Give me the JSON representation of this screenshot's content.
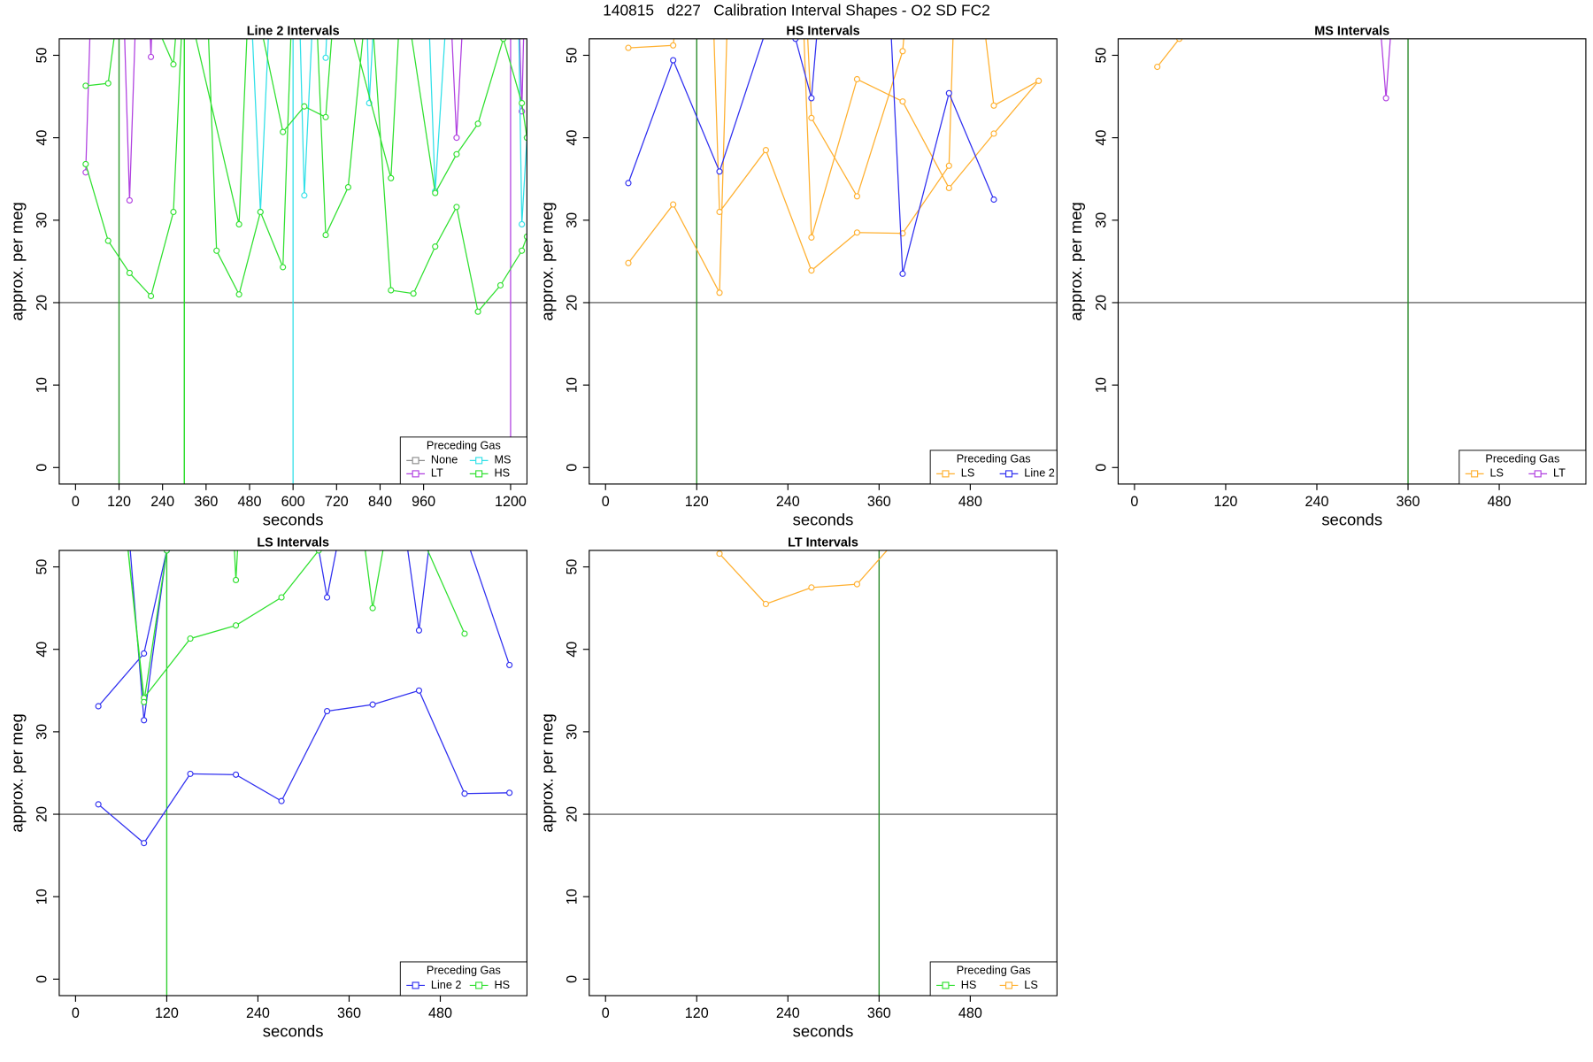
{
  "title": "140815   d227   Calibration Interval Shapes - O2 SD FC2",
  "chart_data": [
    {
      "type": "line",
      "title": "Line 2 Intervals",
      "xlabel": "seconds",
      "ylabel": "approx. per meg",
      "xlim": [
        -45,
        1245
      ],
      "ylim": [
        -2,
        52
      ],
      "xticks": [
        0,
        120,
        240,
        360,
        480,
        600,
        720,
        840,
        960,
        1200
      ],
      "yticks": [
        0,
        10,
        20,
        30,
        40,
        50
      ],
      "hline": 20,
      "vlines": [
        {
          "value": 120,
          "color": "#2e9a2e"
        },
        {
          "value": 300,
          "color": "#22dd22"
        }
      ],
      "legend": {
        "title": "Preceding Gas",
        "position": "bottom-right",
        "ncol": 2
      },
      "series": [
        {
          "name": "None",
          "color": "#8c8c8c",
          "x": [],
          "values": []
        },
        {
          "name": "LT",
          "color": "#b040e0",
          "x": [
            28,
            45,
            null,
            130,
            149,
            170,
            null,
            200,
            208,
            215,
            null,
            1030,
            1051,
            1075,
            null,
            1200,
            1200,
            null,
            1220,
            1231,
            1240
          ],
          "values": [
            35.8,
            60,
            null,
            60,
            32.4,
            60,
            null,
            60,
            49.8,
            60,
            null,
            60,
            40,
            60,
            null,
            60,
            -5,
            null,
            60,
            43.2,
            60
          ]
        },
        {
          "name": "MS",
          "color": "#30e0e8",
          "x": [
            480,
            510,
            540,
            null,
            600,
            600,
            null,
            615,
            631,
            660,
            null,
            690,
            700,
            null,
            800,
            810,
            830,
            null,
            970,
            992,
            1030,
            null,
            1220,
            1231,
            1245
          ],
          "values": [
            60,
            31,
            60,
            null,
            60,
            -5,
            null,
            60,
            33,
            60,
            null,
            49.7,
            60,
            null,
            60,
            44.2,
            60,
            null,
            60,
            33.5,
            60,
            null,
            60,
            29.5,
            40
          ]
        },
        {
          "name": "HS",
          "color": "#30e030",
          "x": [
            28,
            90,
            149,
            208,
            270,
            300,
            360,
            389,
            451,
            510,
            572,
            600,
            660,
            690,
            752,
            810,
            870,
            932,
            992,
            1051,
            1110,
            1172,
            1231,
            1245,
            null,
            28,
            90,
            130,
            160,
            270,
            290,
            451,
            480,
            572,
            631,
            690,
            720,
            870,
            900,
            992,
            1051,
            1110,
            1180,
            1231,
            1245
          ],
          "values": [
            36.8,
            27.5,
            23.6,
            20.8,
            31,
            60,
            60,
            26.3,
            21,
            31,
            24.3,
            60,
            60,
            28.2,
            34,
            60,
            21.5,
            21.1,
            26.8,
            31.6,
            18.9,
            22.1,
            26.3,
            28,
            null,
            46.3,
            46.6,
            60,
            60,
            48.9,
            60,
            29.5,
            60,
            40.7,
            43.8,
            42.5,
            60,
            35.1,
            60,
            33.3,
            38,
            41.7,
            52,
            44.2,
            40
          ]
        }
      ]
    },
    {
      "type": "line",
      "title": "HS Intervals",
      "xlabel": "seconds",
      "ylabel": "approx. per meg",
      "xlim": [
        -21.5,
        594
      ],
      "ylim": [
        -2,
        52
      ],
      "xticks": [
        0,
        120,
        240,
        360,
        480
      ],
      "yticks": [
        0,
        10,
        20,
        30,
        40,
        50
      ],
      "hline": 20,
      "vlines": [
        {
          "value": 120,
          "color": "#2a8a2a"
        }
      ],
      "legend": {
        "title": "Preceding Gas",
        "position": "bottom-right",
        "ncol": 2
      },
      "series": [
        {
          "name": "LS",
          "color": "#ffb030",
          "x": [
            30,
            89,
            150,
            162,
            null,
            30,
            89,
            100,
            null,
            140,
            150,
            211,
            271,
            331,
            391,
            452,
            460,
            null,
            258,
            271,
            331,
            391,
            452,
            511,
            570,
            null,
            262,
            271,
            331,
            391,
            400,
            null,
            490,
            511,
            570
          ],
          "values": [
            24.8,
            31.9,
            21.2,
            60,
            null,
            50.9,
            51.2,
            60,
            null,
            60,
            31,
            38.5,
            23.9,
            28.5,
            28.4,
            36.6,
            60,
            null,
            60,
            27.9,
            47.1,
            44.4,
            33.9,
            40.5,
            46.9,
            null,
            60,
            42.4,
            32.9,
            50.5,
            60,
            null,
            60,
            43.9,
            46.9
          ]
        },
        {
          "name": "Line 2",
          "color": "#3030f0",
          "x": [
            30,
            89,
            150,
            211,
            250,
            271,
            285,
            null,
            372,
            391,
            452,
            511
          ],
          "values": [
            34.5,
            49.4,
            35.9,
            53,
            52,
            44.8,
            60,
            null,
            60,
            23.5,
            45.4,
            32.5
          ]
        }
      ]
    },
    {
      "type": "line",
      "title": "MS Intervals",
      "xlabel": "seconds",
      "ylabel": "approx. per meg",
      "xlim": [
        -21.5,
        594
      ],
      "ylim": [
        -2,
        52
      ],
      "xticks": [
        0,
        120,
        240,
        360,
        480
      ],
      "yticks": [
        0,
        10,
        20,
        30,
        40,
        50
      ],
      "hline": 20,
      "vlines": [
        {
          "value": 360,
          "color": "#2a8a2a"
        }
      ],
      "legend": {
        "title": "Preceding Gas",
        "position": "bottom-right",
        "ncol": 2
      },
      "series": [
        {
          "name": "LS",
          "color": "#ffb030",
          "x": [
            30,
            59,
            75
          ],
          "values": [
            48.6,
            52,
            60
          ]
        },
        {
          "name": "LT",
          "color": "#b040e0",
          "x": [
            318,
            331,
            343
          ],
          "values": [
            60,
            44.8,
            60
          ]
        }
      ]
    },
    {
      "type": "line",
      "title": "LS Intervals",
      "xlabel": "seconds",
      "ylabel": "approx. per meg",
      "xlim": [
        -21.5,
        594
      ],
      "ylim": [
        -2,
        52
      ],
      "xticks": [
        0,
        120,
        240,
        360,
        480
      ],
      "yticks": [
        0,
        10,
        20,
        30,
        40,
        50
      ],
      "hline": 20,
      "vlines": [
        {
          "value": 120,
          "color": "#30d030"
        }
      ],
      "legend": {
        "title": "Preceding Gas",
        "position": "bottom-right",
        "ncol": 2
      },
      "series": [
        {
          "name": "Line 2",
          "color": "#3030f0",
          "x": [
            30,
            90,
            151,
            211,
            271,
            331,
            391,
            452,
            512,
            571,
            null,
            30,
            90,
            120,
            125,
            null,
            65,
            90,
            120,
            125,
            null,
            305,
            331,
            360,
            null,
            425,
            452,
            475,
            null,
            490,
            571
          ],
          "values": [
            21.2,
            16.5,
            24.9,
            24.8,
            21.6,
            32.5,
            33.3,
            35,
            22.5,
            22.6,
            null,
            33.1,
            39.5,
            52,
            60,
            null,
            60,
            31.4,
            52,
            60,
            null,
            60,
            46.3,
            60,
            null,
            60,
            42.3,
            60,
            null,
            60,
            38.1
          ]
        },
        {
          "name": "HS",
          "color": "#30e030",
          "x": [
            60,
            90,
            151,
            211,
            271,
            320,
            331,
            null,
            60,
            90,
            120,
            125,
            null,
            205,
            211,
            218,
            null,
            370,
            391,
            420,
            null,
            425,
            512
          ],
          "values": [
            60,
            34.1,
            41.3,
            42.9,
            46.3,
            52,
            55,
            null,
            60,
            33.6,
            52,
            60,
            null,
            60,
            48.4,
            60,
            null,
            60,
            45,
            60,
            null,
            60,
            41.9
          ]
        }
      ]
    },
    {
      "type": "line",
      "title": "LT Intervals",
      "xlabel": "seconds",
      "ylabel": "approx. per meg",
      "xlim": [
        -21.5,
        594
      ],
      "ylim": [
        -2,
        52
      ],
      "xticks": [
        0,
        120,
        240,
        360,
        480
      ],
      "yticks": [
        0,
        10,
        20,
        30,
        40,
        50
      ],
      "hline": 20,
      "vlines": [
        {
          "value": 360,
          "color": "#2a8a2a"
        }
      ],
      "legend": {
        "title": "Preceding Gas",
        "position": "bottom-right",
        "ncol": 2
      },
      "series": [
        {
          "name": "HS",
          "color": "#30e030",
          "x": [],
          "values": []
        },
        {
          "name": "LS",
          "color": "#ffb030",
          "x": [
            150,
            211,
            271,
            331,
            380,
            395
          ],
          "values": [
            51.6,
            45.5,
            47.5,
            47.9,
            53,
            60
          ]
        }
      ]
    }
  ]
}
